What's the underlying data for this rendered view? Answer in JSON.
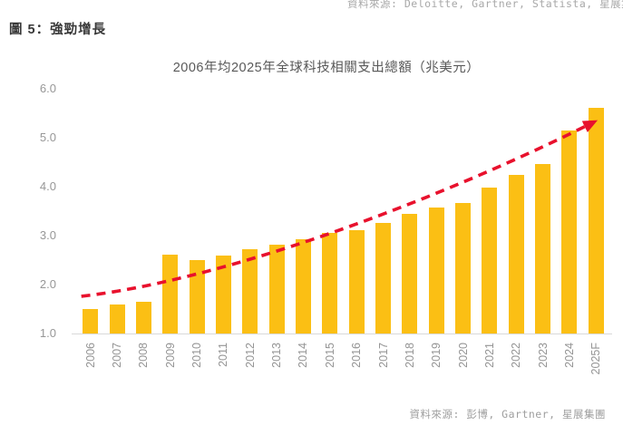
{
  "page": {
    "figure_label": "圖 5：強勁增長",
    "source_top": "資料來源: Deloitte, Gartner, Statista, 星展集團",
    "source_bottom": "資料來源: 彭博, Gartner, 星展集團"
  },
  "colors": {
    "bar": "#FBBF14",
    "trend": "#E8112D",
    "axis_line": "#d9d9d9",
    "axis_text": "#949494",
    "title_text": "#595959",
    "header_text": "#383838",
    "source_text": "#a3a3a3"
  },
  "chart_data": {
    "type": "bar",
    "title": "2006年均2025年全球科技相關支出總額（兆美元）",
    "categories": [
      "2006",
      "2007",
      "2008",
      "2009",
      "2010",
      "2011",
      "2012",
      "2013",
      "2014",
      "2015",
      "2016",
      "2017",
      "2018",
      "2019",
      "2020",
      "2021",
      "2022",
      "2023",
      "2024",
      "2025F"
    ],
    "values": [
      1.5,
      1.6,
      1.65,
      2.62,
      2.5,
      2.6,
      2.72,
      2.82,
      2.92,
      3.05,
      3.12,
      3.26,
      3.44,
      3.57,
      3.67,
      3.98,
      4.24,
      4.46,
      5.15,
      5.62
    ],
    "xlabel": "",
    "ylabel": "",
    "ylim": [
      1.0,
      6.0
    ],
    "yticks": [
      "6.0",
      "5.0",
      "4.0",
      "3.0",
      "2.0",
      "1.0"
    ],
    "grid": false,
    "legend": "none",
    "bar_color": "#FBBF14",
    "trend_line": {
      "type": "dashed-arrow",
      "color": "#E8112D",
      "start_category": "2006",
      "start_value": 1.76,
      "end_category": "2025F",
      "end_value": 5.26
    }
  }
}
